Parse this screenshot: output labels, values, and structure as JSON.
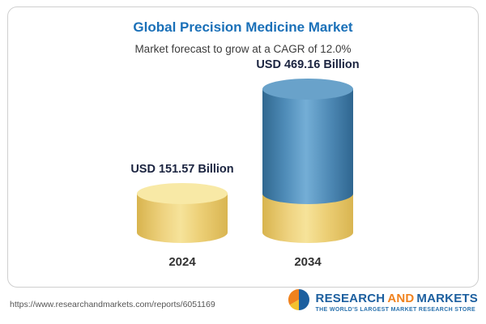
{
  "header": {
    "title": "Global Precision Medicine Market",
    "subtitle": "Market forecast to grow at a CAGR of 12.0%"
  },
  "chart_data": {
    "type": "bar",
    "variant": "3d-cylinder",
    "categories": [
      "2024",
      "2034"
    ],
    "values": [
      151.57,
      469.16
    ],
    "value_labels": [
      "USD 151.57 Billion",
      "USD 469.16 Billion"
    ],
    "unit": "USD Billion",
    "title": "Global Precision Medicine Market",
    "subtitle": "Market forecast to grow at a CAGR of 12.0%",
    "cagr_pct": 12.0,
    "legend_position": "none",
    "grid": false,
    "colors": {
      "gold": "#eccf76",
      "blue": "#4d88b4",
      "title_blue": "#1a70b8"
    }
  },
  "footer": {
    "url": "https://www.researchandmarkets.com/reports/6051169"
  },
  "logo": {
    "part1": "RESEARCH",
    "part2": "AND",
    "part3": "MARKETS",
    "tagline": "THE WORLD'S LARGEST MARKET RESEARCH STORE"
  }
}
